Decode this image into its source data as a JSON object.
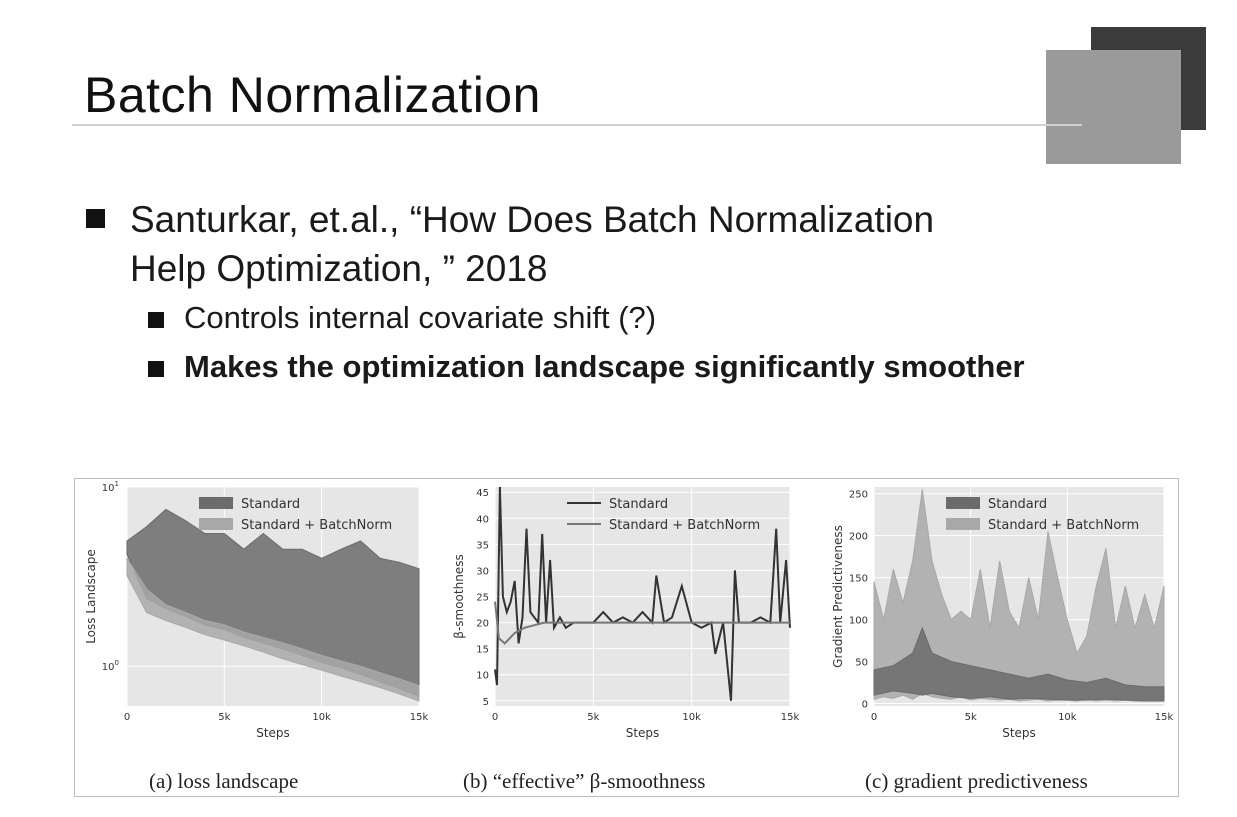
{
  "slide": {
    "title": "Batch Normalization",
    "bullet_main_line1": "Santurkar, et.al., “How Does Batch Normalization",
    "bullet_main_line2": "Help Optimization, ” 2018",
    "sub_bullets": [
      "Controls internal covariate shift (?)",
      "Makes the optimization landscape significantly smoother"
    ]
  },
  "colors": {
    "plot_bg": "#e6e6e6",
    "standard": "#6b6b6b",
    "batchnorm": "#a8a8a8",
    "decor_dark": "#3b3b3b",
    "decor_light": "#9a9a9a"
  },
  "chart_data": [
    {
      "type": "area",
      "caption": "(a) loss landscape",
      "xlabel": "Steps",
      "ylabel": "Loss Landscape",
      "xlim": [
        0,
        15000
      ],
      "xticks": [
        "0",
        "5k",
        "10k",
        "15k"
      ],
      "xtick_values": [
        0,
        5000,
        10000,
        15000
      ],
      "yscale": "log",
      "ylim": [
        0.6,
        10
      ],
      "yticks": [
        "10^0",
        "10^1"
      ],
      "ytick_values": [
        1,
        10
      ],
      "legend": "top-center",
      "grid": true,
      "series": [
        {
          "name": "Standard",
          "x": [
            0,
            1000,
            2000,
            3000,
            4000,
            5000,
            6000,
            7000,
            8000,
            9000,
            10000,
            11000,
            12000,
            13000,
            14000,
            15000
          ],
          "lower": [
            4.2,
            2.4,
            2.1,
            1.9,
            1.7,
            1.6,
            1.45,
            1.35,
            1.25,
            1.15,
            1.05,
            0.98,
            0.9,
            0.82,
            0.75,
            0.68
          ],
          "upper": [
            5.0,
            6.0,
            7.5,
            6.5,
            5.5,
            5.5,
            4.5,
            5.5,
            4.5,
            4.5,
            4.0,
            4.5,
            5.0,
            4.0,
            3.8,
            3.5
          ]
        },
        {
          "name": "Standard + BatchNorm",
          "x": [
            0,
            1000,
            2000,
            3000,
            4000,
            5000,
            6000,
            7000,
            8000,
            9000,
            10000,
            11000,
            12000,
            13000,
            14000,
            15000
          ],
          "lower": [
            3.2,
            2.0,
            1.8,
            1.65,
            1.5,
            1.4,
            1.3,
            1.2,
            1.1,
            1.02,
            0.95,
            0.88,
            0.82,
            0.76,
            0.7,
            0.64
          ],
          "upper": [
            4.0,
            2.7,
            2.2,
            2.0,
            1.8,
            1.7,
            1.55,
            1.45,
            1.35,
            1.25,
            1.15,
            1.07,
            1.0,
            0.92,
            0.85,
            0.78
          ]
        }
      ]
    },
    {
      "type": "line",
      "caption": "(b) “effective” β-smoothness",
      "xlabel": "Steps",
      "ylabel": "β-smoothness",
      "xlim": [
        0,
        15000
      ],
      "xticks": [
        "0",
        "5k",
        "10k",
        "15k"
      ],
      "xtick_values": [
        0,
        5000,
        10000,
        15000
      ],
      "ylim": [
        4,
        46
      ],
      "yticks": [
        "5",
        "10",
        "15",
        "20",
        "25",
        "30",
        "35",
        "40",
        "45"
      ],
      "ytick_values": [
        5,
        10,
        15,
        20,
        25,
        30,
        35,
        40,
        45
      ],
      "legend": "top-center",
      "grid": true,
      "series": [
        {
          "name": "Standard",
          "x": [
            0,
            100,
            250,
            400,
            600,
            800,
            1000,
            1200,
            1400,
            1600,
            1800,
            2000,
            2200,
            2400,
            2600,
            2800,
            3000,
            3300,
            3600,
            4000,
            5000,
            5500,
            6000,
            6500,
            7000,
            7500,
            8000,
            8200,
            8600,
            9000,
            9500,
            10000,
            10500,
            11000,
            11200,
            11600,
            12000,
            12200,
            12400,
            13000,
            13500,
            14000,
            14300,
            14500,
            14800,
            15000
          ],
          "y": [
            11,
            8,
            46,
            25,
            22,
            24,
            28,
            16,
            21,
            38,
            22,
            21,
            20,
            37,
            20,
            32,
            19,
            21,
            19,
            20,
            20,
            22,
            20,
            21,
            20,
            22,
            20,
            29,
            20,
            21,
            27,
            20,
            19,
            20,
            14,
            20,
            5,
            30,
            20,
            20,
            21,
            20,
            38,
            20,
            32,
            19
          ]
        },
        {
          "name": "Standard + BatchNorm",
          "x": [
            0,
            200,
            500,
            1000,
            1500,
            2000,
            2500,
            3000,
            4000,
            5000,
            6000,
            7000,
            8000,
            9000,
            10000,
            11000,
            12000,
            13000,
            14000,
            15000
          ],
          "y": [
            24,
            17,
            16,
            18,
            19,
            19.5,
            20,
            20,
            20,
            20,
            20,
            20,
            20,
            20,
            20,
            20,
            20,
            20,
            20,
            20
          ]
        }
      ]
    },
    {
      "type": "area",
      "caption": "(c) gradient predictiveness",
      "xlabel": "Steps",
      "ylabel": "Gradient Predictiveness",
      "xlim": [
        0,
        15000
      ],
      "xticks": [
        "0",
        "5k",
        "10k",
        "15k"
      ],
      "xtick_values": [
        0,
        5000,
        10000,
        15000
      ],
      "ylim": [
        -3,
        258
      ],
      "yticks": [
        "0",
        "50",
        "100",
        "150",
        "200",
        "250"
      ],
      "ytick_values": [
        0,
        50,
        100,
        150,
        200,
        250
      ],
      "legend": "top-center",
      "grid": true,
      "series": [
        {
          "name": "Standard",
          "x": [
            0,
            1000,
            2000,
            2500,
            3000,
            4000,
            5000,
            6000,
            7000,
            8000,
            9000,
            10000,
            11000,
            12000,
            13000,
            14000,
            15000
          ],
          "lower": [
            10,
            15,
            12,
            10,
            12,
            8,
            6,
            8,
            5,
            6,
            5,
            4,
            4,
            5,
            4,
            3,
            3
          ],
          "upper": [
            40,
            45,
            60,
            90,
            60,
            50,
            45,
            40,
            35,
            30,
            35,
            28,
            25,
            30,
            22,
            20,
            20
          ]
        },
        {
          "name": "Standard + BatchNorm",
          "x": [
            0,
            500,
            1000,
            1500,
            2000,
            2500,
            3000,
            3500,
            4000,
            4500,
            5000,
            5500,
            6000,
            6500,
            7000,
            7500,
            8000,
            8500,
            9000,
            9500,
            10000,
            10500,
            11000,
            11500,
            12000,
            12500,
            13000,
            13500,
            14000,
            14500,
            15000
          ],
          "lower": [
            5,
            8,
            6,
            10,
            5,
            12,
            8,
            6,
            5,
            8,
            4,
            6,
            5,
            4,
            5,
            3,
            4,
            5,
            3,
            4,
            4,
            3,
            5,
            3,
            4,
            3,
            4,
            3,
            3,
            4,
            3
          ],
          "upper": [
            145,
            100,
            160,
            120,
            170,
            255,
            170,
            130,
            100,
            110,
            100,
            160,
            90,
            170,
            110,
            90,
            150,
            100,
            205,
            150,
            100,
            60,
            80,
            140,
            185,
            90,
            140,
            90,
            130,
            90,
            140
          ]
        }
      ]
    }
  ]
}
